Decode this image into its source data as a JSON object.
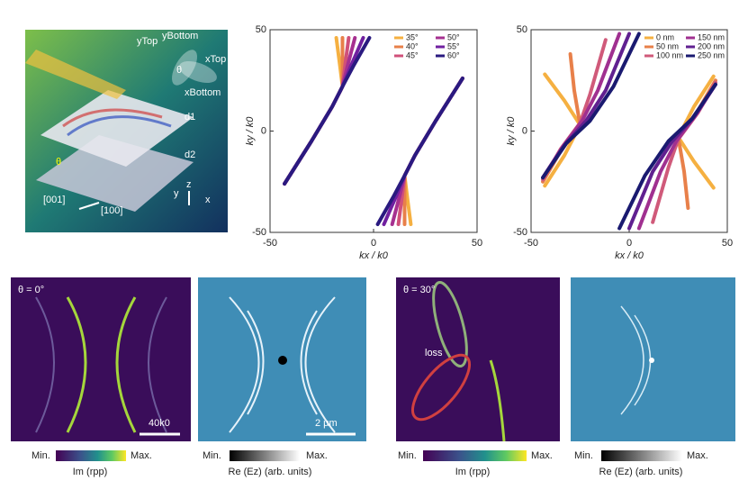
{
  "chart_data": [
    {
      "type": "line",
      "xlabel": "kx / k0",
      "ylabel": "ky / k0",
      "xlim": [
        -50,
        50
      ],
      "ylim": [
        -50,
        50
      ],
      "xticks": [
        -50,
        0,
        50
      ],
      "yticks": [
        -50,
        0,
        50
      ],
      "legend": "upper right",
      "series": [
        {
          "name": "35°",
          "color": "#f5b041",
          "x": [
            -43,
            -30,
            -20,
            -15,
            -16.2,
            -18,
            null,
            43,
            30,
            20,
            15,
            16.2,
            18
          ],
          "values": [
            -26,
            -5,
            12,
            22,
            32,
            46,
            null,
            26,
            5,
            -12,
            -22,
            -32,
            -46
          ]
        },
        {
          "name": "40°",
          "color": "#e8804a",
          "x": [
            -43,
            -30,
            -20,
            -15,
            -15,
            -15,
            null,
            43,
            30,
            20,
            15,
            15,
            15
          ],
          "values": [
            -26,
            -5,
            12,
            22,
            32,
            46,
            null,
            26,
            5,
            -12,
            -22,
            -32,
            -46
          ]
        },
        {
          "name": "45°",
          "color": "#d0507a",
          "x": [
            -43,
            -30,
            -20,
            -15,
            -13.8,
            -12,
            null,
            43,
            30,
            20,
            15,
            13.8,
            12
          ],
          "values": [
            -26,
            -5,
            12,
            22,
            32,
            46,
            null,
            26,
            5,
            -12,
            -22,
            -32,
            -46
          ]
        },
        {
          "name": "50°",
          "color": "#a63090",
          "x": [
            -43,
            -30,
            -20,
            -15,
            -12.6,
            -9,
            null,
            43,
            30,
            20,
            15,
            12.6,
            9
          ],
          "values": [
            -26,
            -5,
            12,
            22,
            32,
            46,
            null,
            26,
            5,
            -12,
            -22,
            -32,
            -46
          ]
        },
        {
          "name": "55°",
          "color": "#7020a0",
          "x": [
            -43,
            -30,
            -20,
            -15,
            -11,
            -5,
            null,
            43,
            30,
            20,
            15,
            11,
            5
          ],
          "values": [
            -26,
            -5,
            12,
            22,
            32,
            46,
            null,
            26,
            5,
            -12,
            -22,
            -32,
            -46
          ]
        },
        {
          "name": "60°",
          "color": "#2a1a80",
          "x": [
            -43,
            -30,
            -20,
            -15,
            -9.8,
            -2,
            null,
            43,
            30,
            20,
            15,
            9.8,
            2
          ],
          "values": [
            -26,
            -5,
            12,
            22,
            32,
            46,
            null,
            26,
            5,
            -12,
            -22,
            -32,
            -46
          ]
        }
      ]
    },
    {
      "type": "line",
      "xlabel": "kx / k0",
      "ylabel": "ky / k0",
      "xlim": [
        -50,
        50
      ],
      "ylim": [
        -50,
        50
      ],
      "xticks": [
        -50,
        0,
        50
      ],
      "yticks": [
        -50,
        0,
        50
      ],
      "legend": "upper right",
      "series": [
        {
          "name": "0 nm",
          "color": "#f5b041",
          "x": [
            -43,
            -33,
            -25,
            -33,
            -43,
            null,
            43,
            33,
            25,
            33,
            43
          ],
          "values": [
            28,
            15,
            3,
            -12,
            -27,
            null,
            -28,
            -15,
            -3,
            12,
            27
          ]
        },
        {
          "name": "50 nm",
          "color": "#e8804a",
          "x": [
            -30,
            -28,
            -25,
            -35,
            -44,
            null,
            30,
            28,
            25,
            35,
            44
          ],
          "values": [
            38,
            20,
            3,
            -10,
            -25,
            null,
            -38,
            -20,
            -3,
            10,
            25
          ]
        },
        {
          "name": "100 nm",
          "color": "#d05a7a",
          "x": [
            -12,
            -20,
            -25,
            -35,
            -44,
            null,
            12,
            20,
            25,
            35,
            44
          ],
          "values": [
            45,
            18,
            4,
            -9,
            -24,
            null,
            -45,
            -18,
            -4,
            9,
            24
          ]
        },
        {
          "name": "150 nm",
          "color": "#a03090",
          "x": [
            -5,
            -16,
            -24,
            -34,
            -44,
            null,
            5,
            16,
            24,
            34,
            44
          ],
          "values": [
            48,
            20,
            5,
            -8,
            -23,
            null,
            -48,
            -20,
            -5,
            8,
            23
          ]
        },
        {
          "name": "200 nm",
          "color": "#602090",
          "x": [
            0,
            -12,
            -22,
            -33,
            -44,
            null,
            0,
            12,
            22,
            33,
            44
          ],
          "values": [
            48,
            20,
            5,
            -7,
            -23,
            null,
            -48,
            -20,
            -5,
            7,
            23
          ]
        },
        {
          "name": "250 nm",
          "color": "#1a1a70",
          "x": [
            5,
            -8,
            -20,
            -32,
            -44,
            null,
            -5,
            8,
            20,
            32,
            44
          ],
          "values": [
            48,
            22,
            5,
            -6,
            -23,
            null,
            -48,
            -22,
            -5,
            6,
            23
          ]
        }
      ]
    }
  ],
  "schematic": {
    "y_top": "yTop",
    "y_bottom": "yBottom",
    "x_top": "xTop",
    "x_bottom": "xBottom",
    "theta": "θ",
    "d1": "d1",
    "d2": "d2",
    "theta2": "θ",
    "dir1": "[001]",
    "dir2": "[100]",
    "axis_y": "y",
    "axis_z": "z",
    "axis_x": "x"
  },
  "maps": [
    {
      "angle": "θ = 0°",
      "scale": "40k0",
      "min": "Min.",
      "max": "Max.",
      "colorbar_label": "Im (rpp)"
    },
    {
      "scale": "2 μm",
      "min": "Min.",
      "max": "Max.",
      "colorbar_label": "Re (Ez) (arb. units)"
    },
    {
      "angle": "θ = 30°",
      "annotation": "loss",
      "min": "Min.",
      "max": "Max.",
      "colorbar_label": "Im (rpp)"
    },
    {
      "min": "Min.",
      "max": "Max.",
      "colorbar_label": "Re (Ez) (arb. units)"
    }
  ]
}
